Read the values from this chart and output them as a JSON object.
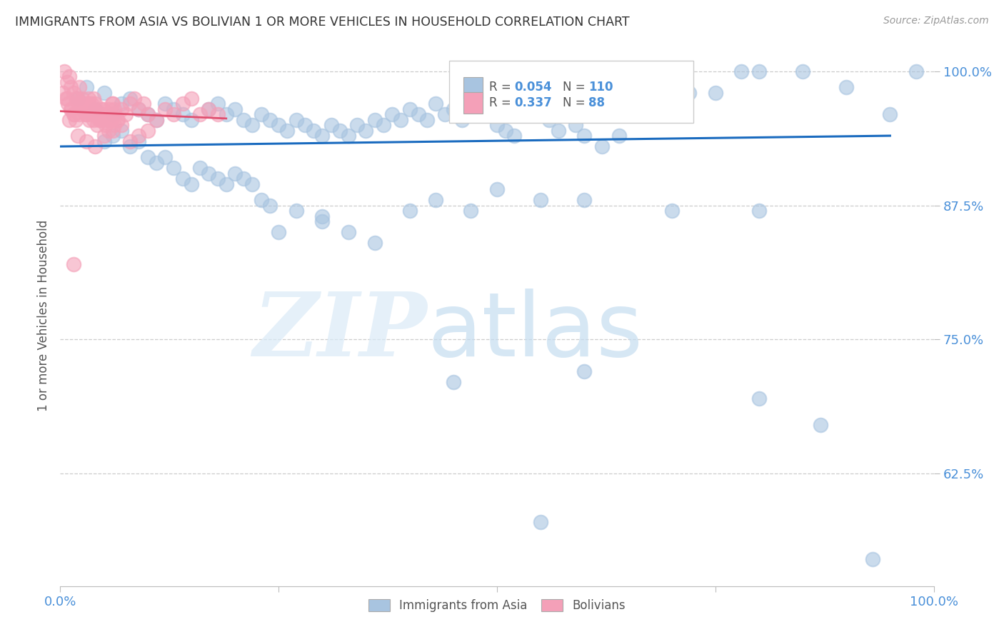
{
  "title": "IMMIGRANTS FROM ASIA VS BOLIVIAN 1 OR MORE VEHICLES IN HOUSEHOLD CORRELATION CHART",
  "source": "Source: ZipAtlas.com",
  "ylabel": "1 or more Vehicles in Household",
  "xlim": [
    0.0,
    1.0
  ],
  "ylim": [
    0.52,
    1.025
  ],
  "yticks": [
    0.625,
    0.75,
    0.875,
    1.0
  ],
  "ytick_labels": [
    "62.5%",
    "75.0%",
    "87.5%",
    "100.0%"
  ],
  "legend_r_asia": "0.054",
  "legend_n_asia": "110",
  "legend_r_bolivian": "0.337",
  "legend_n_bolivian": "88",
  "blue_color": "#a8c4e0",
  "pink_color": "#f4a0b8",
  "line_color": "#1a6bbf",
  "pink_line_color": "#e05070",
  "axis_label_color": "#4a90d9",
  "asia_scatter_x": [
    0.02,
    0.03,
    0.04,
    0.05,
    0.06,
    0.07,
    0.08,
    0.09,
    0.1,
    0.11,
    0.12,
    0.13,
    0.14,
    0.15,
    0.17,
    0.18,
    0.19,
    0.2,
    0.21,
    0.22,
    0.23,
    0.24,
    0.25,
    0.26,
    0.27,
    0.28,
    0.29,
    0.3,
    0.31,
    0.32,
    0.33,
    0.34,
    0.35,
    0.36,
    0.37,
    0.38,
    0.39,
    0.4,
    0.41,
    0.42,
    0.43,
    0.44,
    0.45,
    0.46,
    0.47,
    0.48,
    0.49,
    0.5,
    0.51,
    0.52,
    0.54,
    0.55,
    0.56,
    0.57,
    0.59,
    0.6,
    0.62,
    0.64,
    0.65,
    0.66,
    0.68,
    0.7,
    0.72,
    0.75,
    0.78,
    0.8,
    0.85,
    0.9,
    0.95,
    0.98,
    0.05,
    0.06,
    0.07,
    0.08,
    0.09,
    0.1,
    0.11,
    0.12,
    0.13,
    0.14,
    0.15,
    0.16,
    0.17,
    0.18,
    0.19,
    0.2,
    0.21,
    0.22,
    0.23,
    0.24,
    0.27,
    0.3,
    0.33,
    0.36,
    0.4,
    0.43,
    0.47,
    0.5,
    0.55,
    0.6,
    0.7,
    0.8,
    0.87,
    0.93,
    0.55,
    0.8,
    0.6,
    0.45,
    0.3,
    0.25
  ],
  "asia_scatter_y": [
    0.975,
    0.985,
    0.965,
    0.98,
    0.96,
    0.97,
    0.975,
    0.965,
    0.96,
    0.955,
    0.97,
    0.965,
    0.96,
    0.955,
    0.965,
    0.97,
    0.96,
    0.965,
    0.955,
    0.95,
    0.96,
    0.955,
    0.95,
    0.945,
    0.955,
    0.95,
    0.945,
    0.94,
    0.95,
    0.945,
    0.94,
    0.95,
    0.945,
    0.955,
    0.95,
    0.96,
    0.955,
    0.965,
    0.96,
    0.955,
    0.97,
    0.96,
    0.965,
    0.955,
    0.96,
    0.97,
    0.965,
    0.95,
    0.945,
    0.94,
    0.96,
    0.965,
    0.955,
    0.945,
    0.95,
    0.94,
    0.93,
    0.94,
    0.975,
    0.985,
    0.97,
    0.975,
    0.98,
    0.98,
    1.0,
    1.0,
    1.0,
    0.985,
    0.96,
    1.0,
    0.935,
    0.94,
    0.945,
    0.93,
    0.935,
    0.92,
    0.915,
    0.92,
    0.91,
    0.9,
    0.895,
    0.91,
    0.905,
    0.9,
    0.895,
    0.905,
    0.9,
    0.895,
    0.88,
    0.875,
    0.87,
    0.865,
    0.85,
    0.84,
    0.87,
    0.88,
    0.87,
    0.89,
    0.88,
    0.88,
    0.87,
    0.87,
    0.67,
    0.545,
    0.58,
    0.695,
    0.72,
    0.71,
    0.86,
    0.85
  ],
  "bolivian_scatter_x": [
    0.005,
    0.008,
    0.01,
    0.012,
    0.015,
    0.018,
    0.02,
    0.022,
    0.025,
    0.028,
    0.03,
    0.032,
    0.035,
    0.038,
    0.04,
    0.042,
    0.045,
    0.048,
    0.05,
    0.052,
    0.055,
    0.058,
    0.06,
    0.062,
    0.065,
    0.008,
    0.012,
    0.015,
    0.018,
    0.022,
    0.025,
    0.028,
    0.032,
    0.035,
    0.038,
    0.042,
    0.045,
    0.048,
    0.052,
    0.055,
    0.058,
    0.062,
    0.003,
    0.006,
    0.009,
    0.013,
    0.016,
    0.019,
    0.023,
    0.026,
    0.029,
    0.033,
    0.036,
    0.039,
    0.043,
    0.046,
    0.049,
    0.053,
    0.056,
    0.059,
    0.063,
    0.066,
    0.07,
    0.075,
    0.08,
    0.085,
    0.09,
    0.095,
    0.1,
    0.11,
    0.12,
    0.13,
    0.14,
    0.15,
    0.16,
    0.17,
    0.18,
    0.01,
    0.02,
    0.03,
    0.04,
    0.05,
    0.06,
    0.07,
    0.08,
    0.09,
    0.1,
    0.015
  ],
  "bolivian_scatter_y": [
    1.0,
    0.99,
    0.995,
    0.985,
    0.98,
    0.975,
    0.97,
    0.985,
    0.975,
    0.965,
    0.96,
    0.97,
    0.965,
    0.975,
    0.97,
    0.96,
    0.955,
    0.965,
    0.96,
    0.955,
    0.965,
    0.96,
    0.97,
    0.965,
    0.955,
    0.975,
    0.965,
    0.96,
    0.955,
    0.96,
    0.965,
    0.97,
    0.975,
    0.96,
    0.955,
    0.95,
    0.96,
    0.955,
    0.95,
    0.945,
    0.955,
    0.95,
    0.98,
    0.975,
    0.97,
    0.965,
    0.96,
    0.975,
    0.97,
    0.965,
    0.96,
    0.955,
    0.97,
    0.965,
    0.96,
    0.955,
    0.965,
    0.96,
    0.955,
    0.97,
    0.96,
    0.955,
    0.965,
    0.96,
    0.97,
    0.975,
    0.965,
    0.97,
    0.96,
    0.955,
    0.965,
    0.96,
    0.97,
    0.975,
    0.96,
    0.965,
    0.96,
    0.955,
    0.94,
    0.935,
    0.93,
    0.94,
    0.945,
    0.95,
    0.935,
    0.94,
    0.945,
    0.82
  ]
}
